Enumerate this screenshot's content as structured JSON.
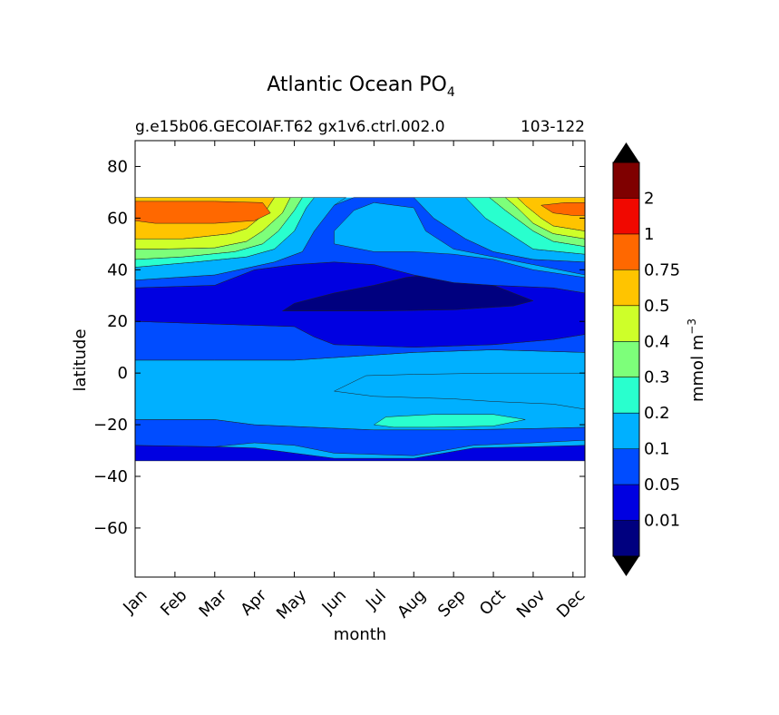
{
  "chart_data": {
    "type": "heatmap",
    "subtype": "filled-contour",
    "title_main": "Atlantic Ocean PO",
    "title_sub": "4",
    "subtitle_left": "g.e15b06.GECOIAF.T62 gx1v6.ctrl.002.0",
    "subtitle_right": "103-122",
    "xlabel": "month",
    "ylabel": "latitude",
    "x_categories": [
      "Jan",
      "Feb",
      "Mar",
      "Apr",
      "May",
      "Jun",
      "Jul",
      "Aug",
      "Sep",
      "Oct",
      "Nov",
      "Dec"
    ],
    "x_range": [
      0,
      11.3
    ],
    "y_range": [
      -79,
      90
    ],
    "y_ticks": [
      80,
      60,
      40,
      20,
      0,
      -20,
      -40,
      -60
    ],
    "y_tick_labels": [
      "80",
      "60",
      "40",
      "20",
      "0",
      "−20",
      "−40",
      "−60"
    ],
    "data_lat_range": [
      -34,
      68
    ],
    "colorbar": {
      "label": "mmol m",
      "label_exp": "−3",
      "levels": [
        0,
        0.01,
        0.05,
        0.1,
        0.2,
        0.3,
        0.4,
        0.5,
        0.75,
        1,
        2,
        3
      ],
      "tick_labels": [
        "0.01",
        "0.05",
        "0.1",
        "0.2",
        "0.3",
        "0.4",
        "0.5",
        "0.75",
        "1",
        "2"
      ],
      "colors": [
        "#00007f",
        "#0000e1",
        "#004cff",
        "#00b0ff",
        "#29ffce",
        "#7dff7a",
        "#ceff29",
        "#ffc400",
        "#ff6800",
        "#f10800",
        "#7f0000"
      ],
      "extend": "both"
    },
    "contour_bands": [
      {
        "level_index": 1,
        "name": "band-0.01-0.05-south",
        "points": [
          [
            0,
            -34
          ],
          [
            11.3,
            -34
          ],
          [
            11.3,
            -28
          ],
          [
            10,
            -28.5
          ],
          [
            8.5,
            -29
          ],
          [
            7,
            -33
          ],
          [
            5,
            -33
          ],
          [
            4,
            -31
          ],
          [
            3,
            -29
          ],
          [
            2,
            -28.5
          ],
          [
            0,
            -28
          ]
        ]
      },
      {
        "level_index": 2,
        "name": "band-0.05-0.1-south",
        "points": [
          [
            0,
            -28
          ],
          [
            2,
            -28.5
          ],
          [
            3,
            -27
          ],
          [
            4,
            -28
          ],
          [
            5,
            -31
          ],
          [
            7,
            -32
          ],
          [
            8.5,
            -28
          ],
          [
            10,
            -27
          ],
          [
            11.3,
            -26
          ],
          [
            11.3,
            -21
          ],
          [
            10,
            -21.5
          ],
          [
            8,
            -22
          ],
          [
            6,
            -22
          ],
          [
            4.5,
            -21
          ],
          [
            3,
            -20
          ],
          [
            2,
            -18
          ],
          [
            0,
            -18
          ]
        ]
      },
      {
        "level_index": 3,
        "name": "band-0.1-0.2-mid",
        "points": [
          [
            0,
            -18
          ],
          [
            2,
            -18
          ],
          [
            3,
            -20
          ],
          [
            4.5,
            -21
          ],
          [
            6,
            -22
          ],
          [
            8,
            -22
          ],
          [
            10,
            -21.5
          ],
          [
            11.3,
            -21
          ],
          [
            11.3,
            -14
          ],
          [
            10.5,
            -12
          ],
          [
            9,
            -11
          ],
          [
            8,
            -10
          ],
          [
            6,
            -9
          ],
          [
            5,
            -7
          ],
          [
            5.8,
            -1
          ],
          [
            7,
            -0.5
          ],
          [
            9,
            0
          ],
          [
            11.3,
            0
          ],
          [
            11.3,
            8
          ],
          [
            9,
            9
          ],
          [
            7,
            8
          ],
          [
            5,
            6
          ],
          [
            4,
            5
          ],
          [
            2,
            5
          ],
          [
            0,
            5
          ]
        ]
      },
      {
        "level_index": 4,
        "name": "band-0.2-0.3-south-patch",
        "points": [
          [
            6,
            -20
          ],
          [
            6.3,
            -17
          ],
          [
            7.5,
            -16
          ],
          [
            9,
            -16
          ],
          [
            9.8,
            -18
          ],
          [
            9,
            -20.5
          ],
          [
            7.5,
            -21
          ],
          [
            6.5,
            -21
          ]
        ]
      },
      {
        "level_index": 2,
        "name": "band-0.05-0.1-north",
        "points": [
          [
            0,
            5
          ],
          [
            2,
            5
          ],
          [
            4,
            5
          ],
          [
            5,
            6
          ],
          [
            7,
            8
          ],
          [
            9,
            9
          ],
          [
            11.3,
            8
          ],
          [
            11.3,
            15
          ],
          [
            10.5,
            13
          ],
          [
            9,
            11
          ],
          [
            7,
            10
          ],
          [
            5,
            11
          ],
          [
            4.5,
            14
          ],
          [
            4,
            18
          ],
          [
            2,
            19
          ],
          [
            0,
            20
          ]
        ]
      },
      {
        "level_index": 1,
        "name": "band-0.01-0.05-north",
        "points": [
          [
            0,
            20
          ],
          [
            2,
            19
          ],
          [
            4,
            18
          ],
          [
            4.5,
            14
          ],
          [
            5,
            11
          ],
          [
            7,
            10
          ],
          [
            9,
            11
          ],
          [
            10.5,
            13
          ],
          [
            11.3,
            15
          ],
          [
            11.3,
            31
          ],
          [
            10.5,
            33
          ],
          [
            9,
            34
          ],
          [
            8,
            35
          ],
          [
            7,
            38
          ],
          [
            6,
            42
          ],
          [
            5,
            43
          ],
          [
            4,
            42
          ],
          [
            3,
            40
          ],
          [
            2,
            34
          ],
          [
            0,
            33
          ]
        ]
      },
      {
        "level_index": 0,
        "name": "band-0-0.01-core",
        "points": [
          [
            3.7,
            24
          ],
          [
            4,
            27
          ],
          [
            5,
            31
          ],
          [
            6,
            34
          ],
          [
            6.8,
            37
          ],
          [
            7.3,
            38
          ],
          [
            8,
            37
          ],
          [
            9,
            34
          ],
          [
            9.5,
            31
          ],
          [
            10,
            28
          ],
          [
            9.5,
            26
          ],
          [
            8,
            24.5
          ],
          [
            6,
            24
          ],
          [
            5,
            24
          ]
        ]
      },
      {
        "level_index": 2,
        "name": "band-0.05-0.1-upper",
        "points": [
          [
            0,
            33
          ],
          [
            2,
            34
          ],
          [
            3,
            40
          ],
          [
            4,
            42
          ],
          [
            5,
            43
          ],
          [
            6,
            42
          ],
          [
            7,
            38
          ],
          [
            8,
            35
          ],
          [
            9,
            34
          ],
          [
            10.5,
            33
          ],
          [
            11.3,
            31
          ],
          [
            11.3,
            37
          ],
          [
            10,
            40
          ],
          [
            9,
            44
          ],
          [
            8,
            46
          ],
          [
            7,
            47
          ],
          [
            6,
            47
          ],
          [
            5,
            50
          ],
          [
            5,
            55
          ],
          [
            5.5,
            63
          ],
          [
            6,
            66
          ],
          [
            7,
            64
          ],
          [
            7.3,
            55
          ],
          [
            8,
            48
          ],
          [
            9,
            45
          ],
          [
            10,
            42
          ],
          [
            11.3,
            38
          ],
          [
            11.3,
            43
          ],
          [
            10,
            44
          ],
          [
            9,
            47
          ],
          [
            8.3,
            52
          ],
          [
            7.5,
            60
          ],
          [
            7,
            68
          ],
          [
            5.5,
            68
          ],
          [
            5,
            65
          ],
          [
            4.5,
            55
          ],
          [
            4.2,
            47
          ],
          [
            3.5,
            43
          ],
          [
            2,
            38
          ],
          [
            0,
            36
          ]
        ]
      },
      {
        "level_index": 3,
        "name": "band-0.1-0.2-upper",
        "points": [
          [
            0,
            36
          ],
          [
            2,
            38
          ],
          [
            3.5,
            43
          ],
          [
            4.2,
            47
          ],
          [
            4.5,
            55
          ],
          [
            5,
            65
          ],
          [
            5.3,
            68
          ],
          [
            4.5,
            68
          ],
          [
            4.3,
            64
          ],
          [
            4,
            55
          ],
          [
            3.5,
            48
          ],
          [
            2.8,
            45
          ],
          [
            1.5,
            43
          ],
          [
            0,
            41
          ]
        ]
      },
      {
        "level_index": 3,
        "name": "band-0.1-0.2-upper-right",
        "points": [
          [
            7,
            68
          ],
          [
            7.5,
            60
          ],
          [
            8.3,
            52
          ],
          [
            9,
            47
          ],
          [
            10,
            44
          ],
          [
            11.3,
            43
          ],
          [
            11.3,
            46
          ],
          [
            10,
            48
          ],
          [
            9.5,
            53
          ],
          [
            8.8,
            60
          ],
          [
            8.3,
            68
          ]
        ]
      },
      {
        "level_index": 4,
        "name": "band-0.2-0.3-left",
        "points": [
          [
            0,
            41
          ],
          [
            1.5,
            43
          ],
          [
            2.8,
            45
          ],
          [
            3.5,
            48
          ],
          [
            4,
            55
          ],
          [
            4.3,
            64
          ],
          [
            4.5,
            68
          ],
          [
            4.2,
            68
          ],
          [
            4,
            63
          ],
          [
            3.6,
            55
          ],
          [
            3.2,
            50
          ],
          [
            2.5,
            47
          ],
          [
            1.2,
            45
          ],
          [
            0,
            44
          ]
        ]
      },
      {
        "level_index": 4,
        "name": "band-0.2-0.3-right",
        "points": [
          [
            8.3,
            68
          ],
          [
            8.8,
            60
          ],
          [
            9.5,
            53
          ],
          [
            10,
            48
          ],
          [
            11.3,
            46
          ],
          [
            11.3,
            49
          ],
          [
            10.5,
            51
          ],
          [
            10,
            55
          ],
          [
            9.3,
            63
          ],
          [
            8.9,
            68
          ]
        ]
      },
      {
        "level_index": 5,
        "name": "band-0.3-0.4-left",
        "points": [
          [
            0,
            44
          ],
          [
            1.2,
            45
          ],
          [
            2.5,
            47
          ],
          [
            3.2,
            50
          ],
          [
            3.6,
            55
          ],
          [
            4,
            63
          ],
          [
            4.2,
            68
          ],
          [
            3.9,
            68
          ],
          [
            3.7,
            62
          ],
          [
            3.2,
            55
          ],
          [
            2.8,
            51
          ],
          [
            2,
            48.5
          ],
          [
            0.6,
            48
          ],
          [
            0,
            48
          ]
        ]
      },
      {
        "level_index": 5,
        "name": "band-0.3-0.4-right",
        "points": [
          [
            8.9,
            68
          ],
          [
            9.3,
            63
          ],
          [
            10,
            55
          ],
          [
            10.5,
            51
          ],
          [
            11.3,
            49
          ],
          [
            11.3,
            52
          ],
          [
            10.5,
            54
          ],
          [
            10,
            58
          ],
          [
            9.6,
            64
          ],
          [
            9.3,
            68
          ]
        ]
      },
      {
        "level_index": 6,
        "name": "band-0.4-0.5-left",
        "points": [
          [
            0,
            48
          ],
          [
            0.6,
            48
          ],
          [
            2,
            48.5
          ],
          [
            2.8,
            51
          ],
          [
            3.2,
            55
          ],
          [
            3.7,
            62
          ],
          [
            3.9,
            68
          ],
          [
            3.5,
            68
          ],
          [
            3.2,
            61
          ],
          [
            2.8,
            56
          ],
          [
            2.4,
            54
          ],
          [
            1.2,
            52
          ],
          [
            0,
            52
          ]
        ]
      },
      {
        "level_index": 6,
        "name": "band-0.4-0.5-right",
        "points": [
          [
            9.3,
            68
          ],
          [
            9.6,
            64
          ],
          [
            10,
            58
          ],
          [
            10.5,
            54
          ],
          [
            11.3,
            52
          ],
          [
            11.3,
            55
          ],
          [
            10.5,
            57
          ],
          [
            10.2,
            60
          ],
          [
            9.8,
            65
          ],
          [
            9.6,
            68
          ]
        ]
      },
      {
        "level_index": 7,
        "name": "band-0.5-0.75-left",
        "points": [
          [
            0,
            52
          ],
          [
            1.2,
            52
          ],
          [
            2.4,
            54
          ],
          [
            2.8,
            56
          ],
          [
            3.2,
            61
          ],
          [
            3.5,
            68
          ],
          [
            0,
            68
          ]
        ]
      },
      {
        "level_index": 7,
        "name": "band-0.5-0.75-right",
        "points": [
          [
            9.6,
            68
          ],
          [
            9.8,
            65
          ],
          [
            10.2,
            60
          ],
          [
            10.5,
            57
          ],
          [
            11.3,
            55
          ],
          [
            11.3,
            68
          ]
        ]
      },
      {
        "level_index": 8,
        "name": "band-0.75-1-left",
        "points": [
          [
            0,
            59
          ],
          [
            0.5,
            58
          ],
          [
            2,
            58
          ],
          [
            3,
            59
          ],
          [
            3.4,
            62
          ],
          [
            3.2,
            66
          ],
          [
            2,
            66.5
          ],
          [
            0,
            66.5
          ]
        ]
      },
      {
        "level_index": 8,
        "name": "band-0.75-1-right",
        "points": [
          [
            10.2,
            65
          ],
          [
            10.5,
            62
          ],
          [
            11,
            61
          ],
          [
            11.3,
            61
          ],
          [
            11.3,
            66
          ],
          [
            10.8,
            66
          ]
        ]
      }
    ]
  }
}
